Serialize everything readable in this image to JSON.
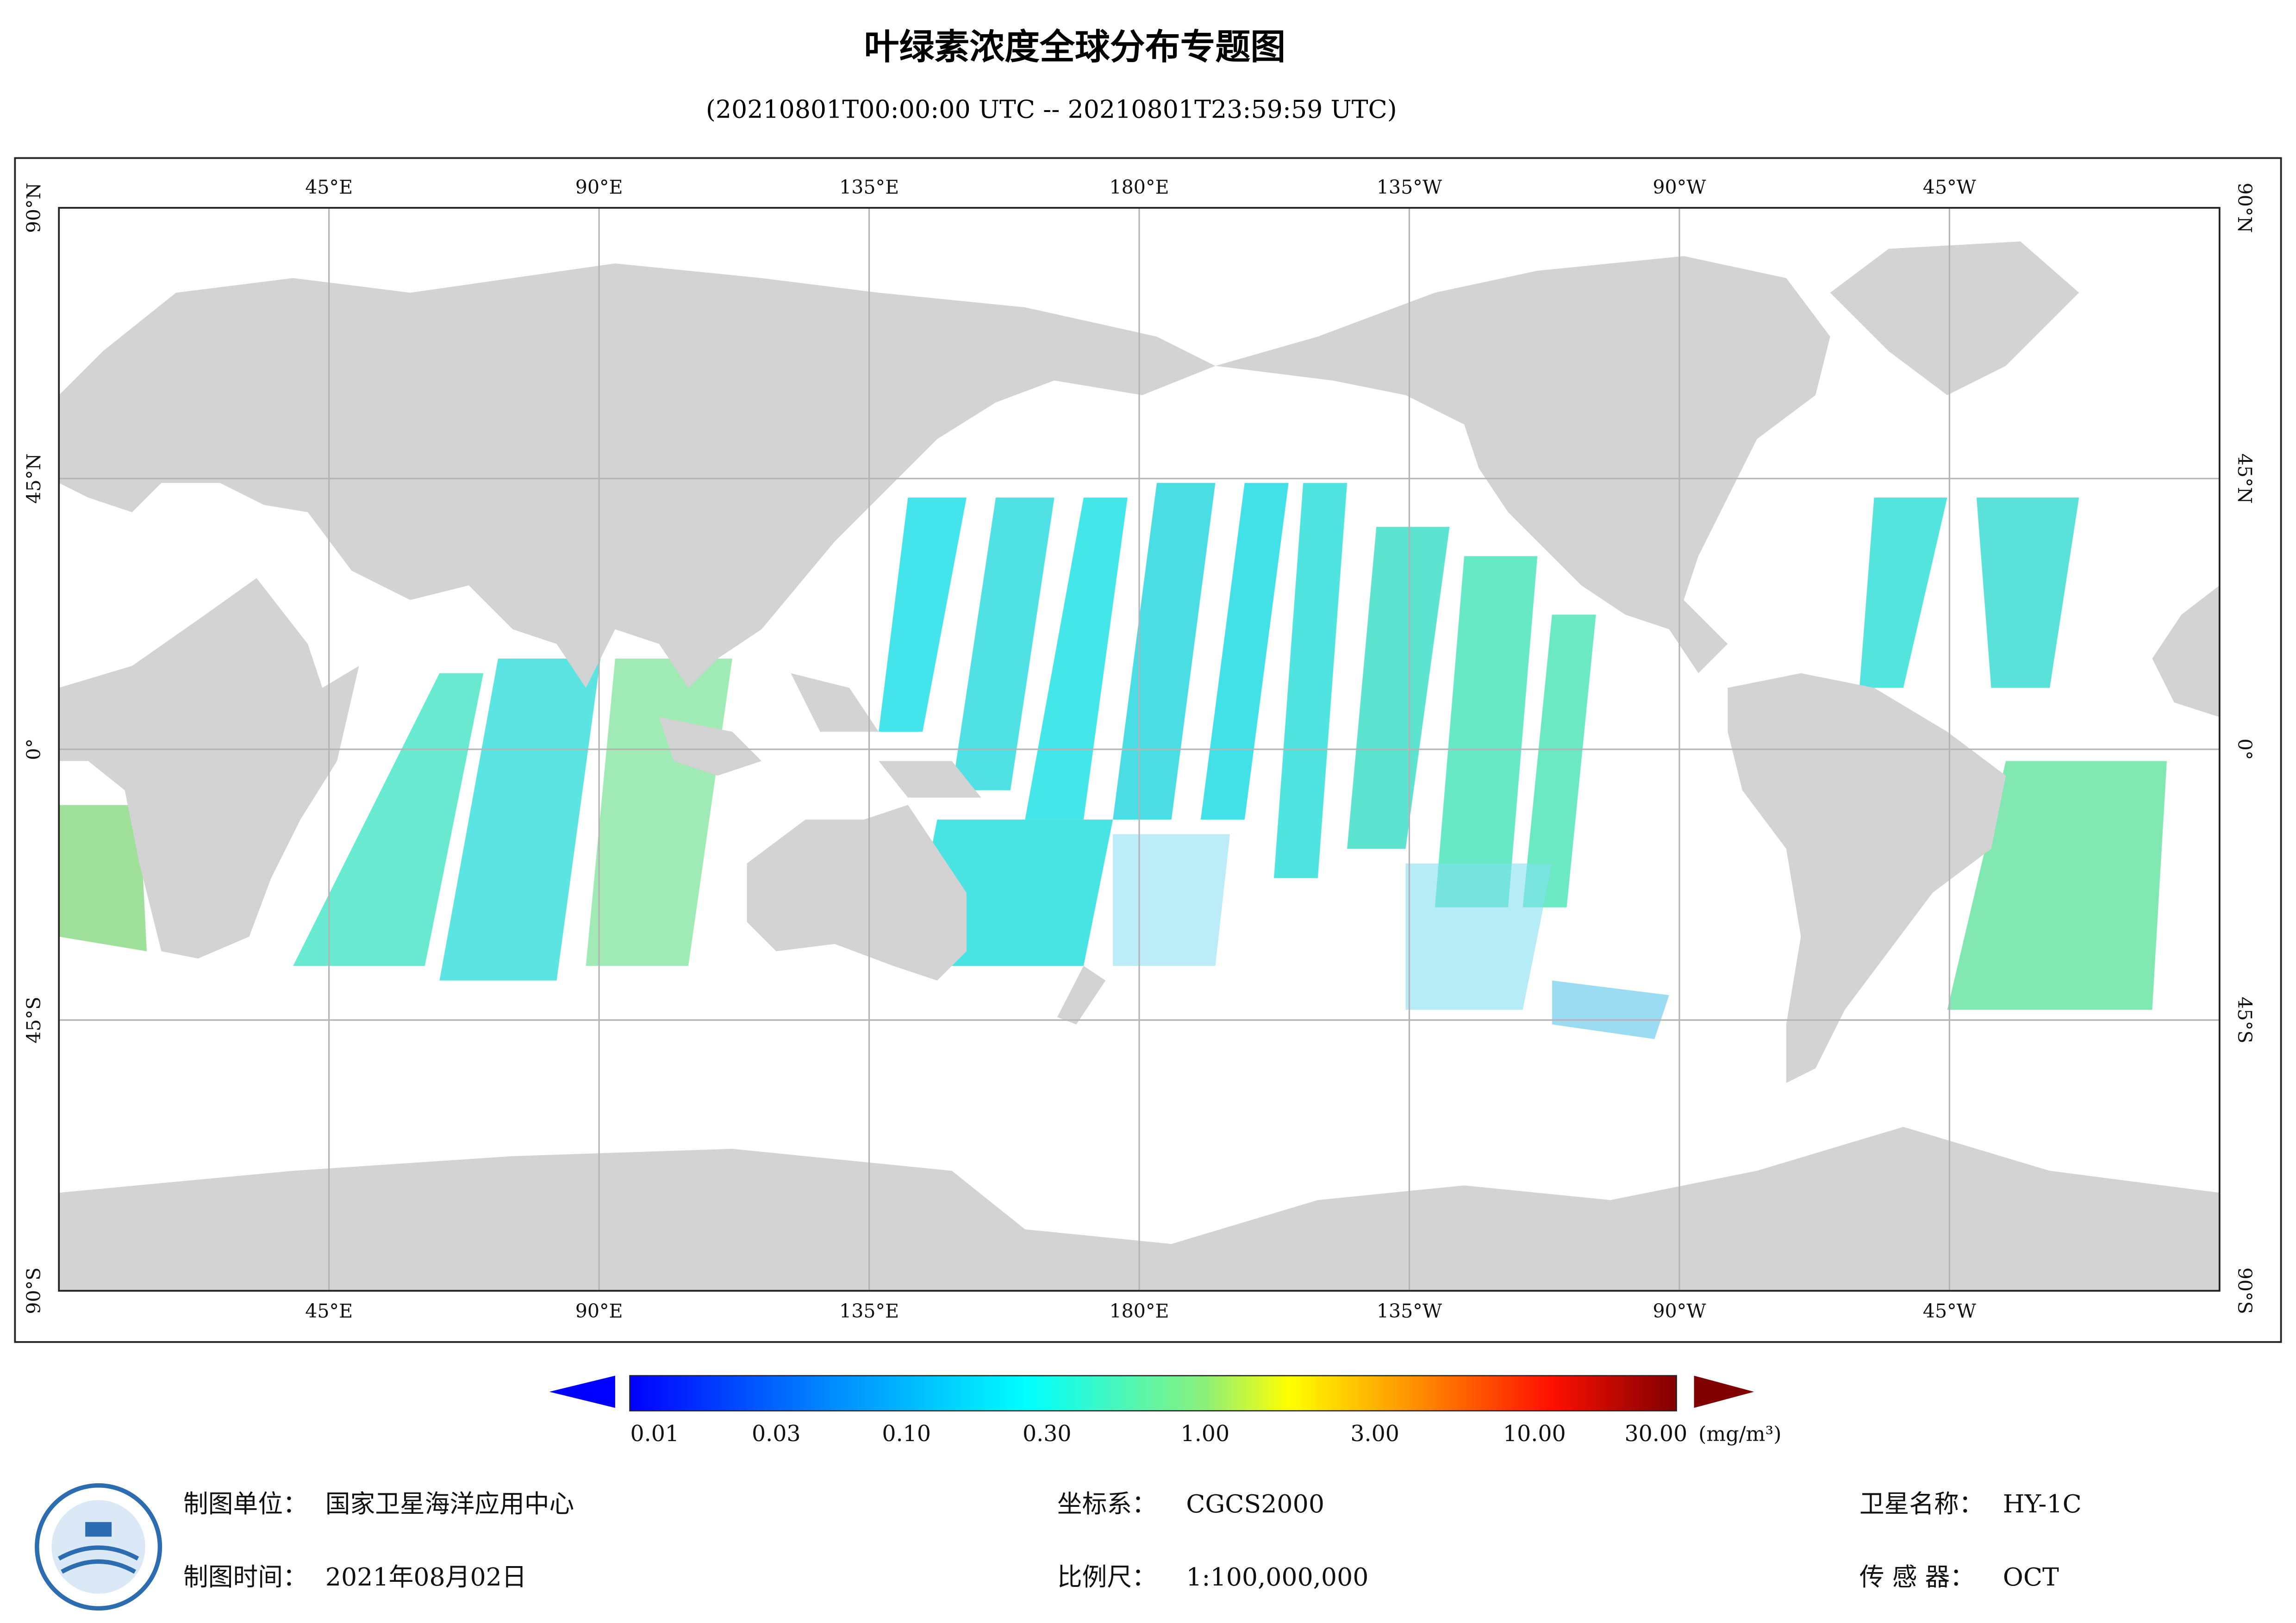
{
  "header": {
    "title": "叶绿素浓度全球分布专题图",
    "subtitle": "(20210801T00:00:00 UTC -- 20210801T23:59:59 UTC)"
  },
  "map": {
    "lon_labels": [
      "45°E",
      "90°E",
      "135°E",
      "180°E",
      "135°W",
      "90°W",
      "45°W"
    ],
    "lat_labels": [
      "90°N",
      "45°N",
      "0°",
      "45°S",
      "90°S"
    ]
  },
  "colorbar": {
    "labels": [
      "0.01",
      "0.03",
      "0.10",
      "0.30",
      "1.00",
      "3.00",
      "10.00",
      "30.00"
    ],
    "unit": "(mg/m³)"
  },
  "footer": {
    "unit_label": "制图单位：",
    "unit_value": "国家卫星海洋应用中心",
    "date_label": "制图时间：",
    "date_value": "2021年08月02日",
    "crs_label": "坐标系：",
    "crs_value": "CGCS2000",
    "scale_label": "比例尺：",
    "scale_value": "1:100,000,000",
    "satellite_label": "卫星名称：",
    "satellite_value": "HY-1C",
    "sensor_label": "传 感 器：",
    "sensor_value": "OCT"
  }
}
